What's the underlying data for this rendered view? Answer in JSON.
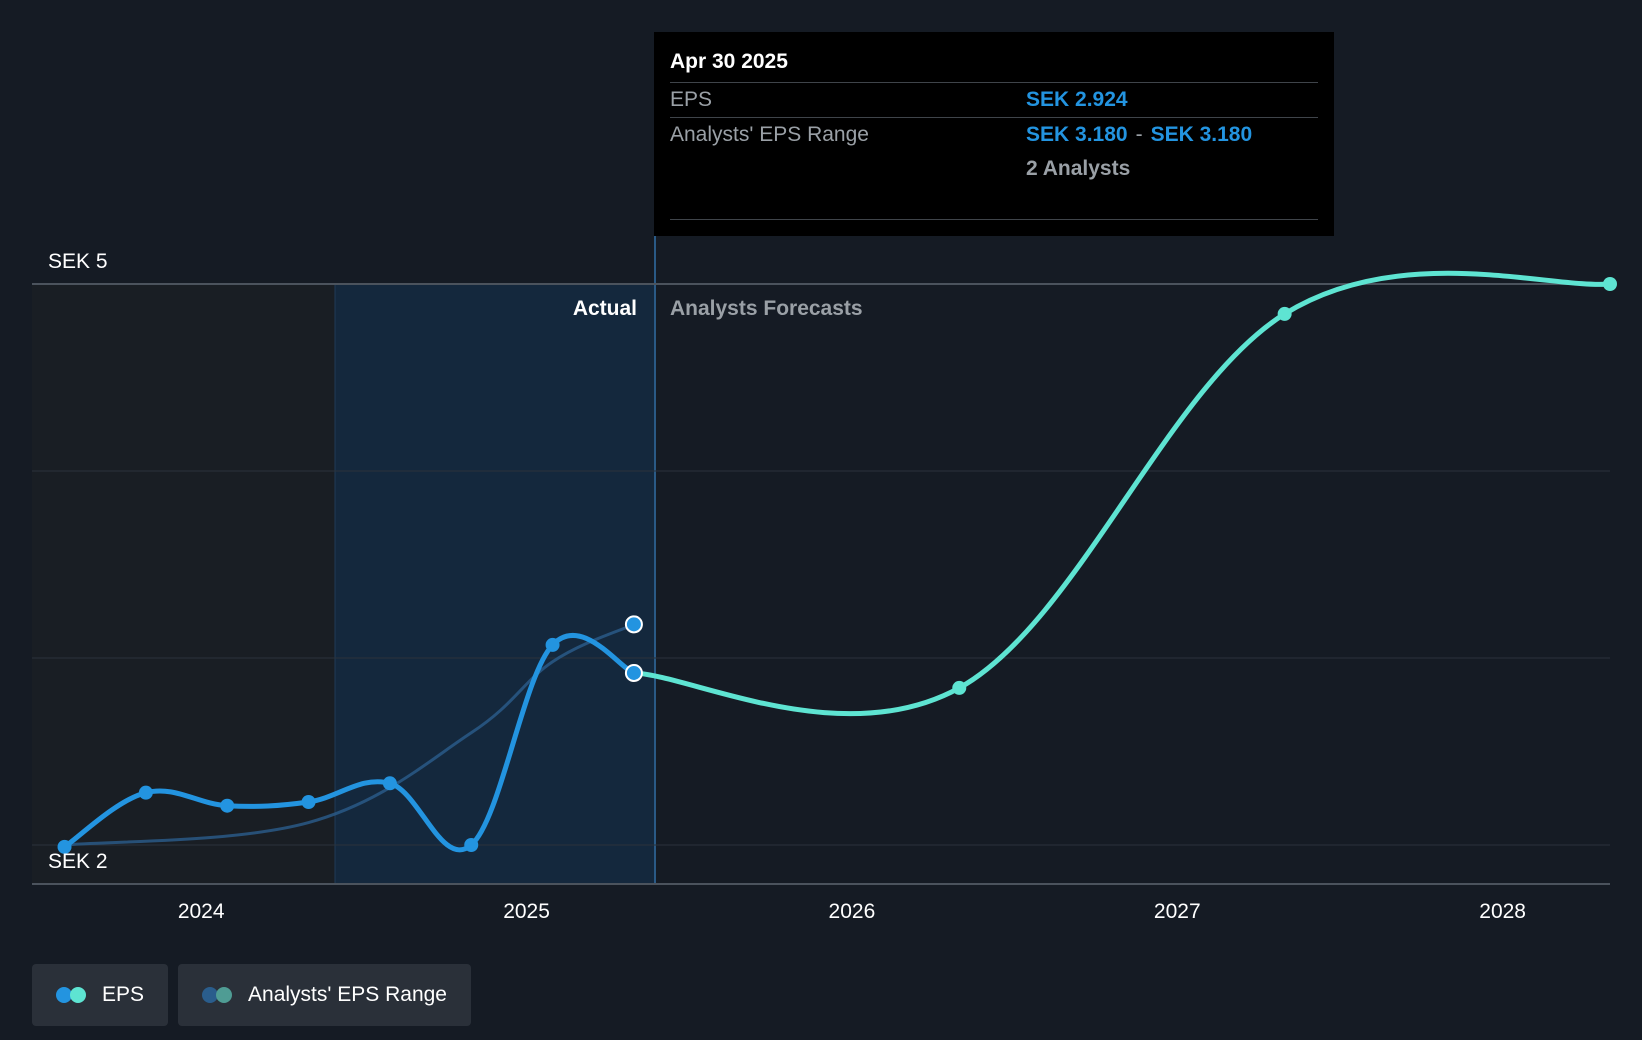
{
  "tooltip": {
    "date": "Apr 30 2025",
    "eps_label": "EPS",
    "eps_value": "SEK 2.924",
    "range_label": "Analysts' EPS Range",
    "range_low": "SEK 3.180",
    "range_sep": "-",
    "range_high": "SEK 3.180",
    "analysts": "2 Analysts"
  },
  "regions": {
    "actual_label": "Actual",
    "forecast_label": "Analysts Forecasts"
  },
  "legend": {
    "eps_label": "EPS",
    "range_label": "Analysts' EPS Range"
  },
  "colors": {
    "background": "#151b24",
    "actual_line": "#2394e0",
    "forecast_line": "#5ee4d2",
    "range_line": "#2a5d8c",
    "highlight": "#1a3a5a"
  },
  "chart_data": {
    "type": "line",
    "y_tick_labels": [
      "SEK 5",
      "SEK 2"
    ],
    "ylim": [
      2,
      5
    ],
    "x_tick_labels": [
      "2024",
      "2025",
      "2026",
      "2027",
      "2028"
    ],
    "x_ticks": [
      2024.0,
      2025.0,
      2026.0,
      2027.0,
      2028.0
    ],
    "xlim": [
      2023.48,
      2028.33
    ],
    "grid": true,
    "series": [
      {
        "name": "EPS",
        "kind": "actual",
        "x": [
          2023.58,
          2023.83,
          2024.08,
          2024.33,
          2024.58,
          2024.83,
          2025.08,
          2025.33
        ],
        "y": [
          1.99,
          2.28,
          2.21,
          2.23,
          2.33,
          2.0,
          3.07,
          2.92
        ]
      },
      {
        "name": "EPS",
        "kind": "forecast",
        "x": [
          2025.33,
          2026.33,
          2027.33,
          2028.33
        ],
        "y": [
          2.92,
          2.84,
          4.84,
          5.0
        ]
      },
      {
        "name": "Analysts' EPS Range",
        "kind": "range",
        "x": [
          2023.58,
          2024.33,
          2024.83,
          2025.08,
          2025.33
        ],
        "y": [
          2.0,
          2.12,
          2.6,
          2.98,
          3.18
        ]
      }
    ],
    "highlight_markers": [
      {
        "x": 2025.33,
        "y": 3.18
      },
      {
        "x": 2025.33,
        "y": 2.92
      }
    ]
  }
}
